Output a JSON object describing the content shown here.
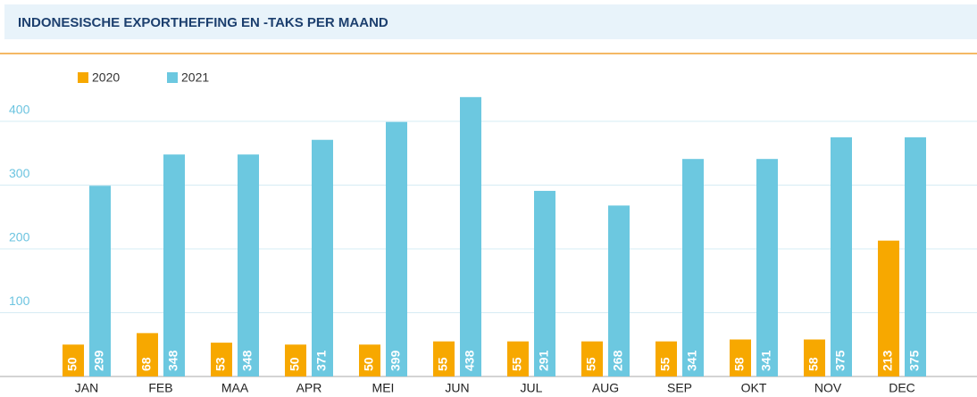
{
  "chart_data": {
    "type": "bar",
    "title": "INDONESISCHE EXPORTHEFFING EN -TAKS PER MAAND",
    "categories": [
      "JAN",
      "FEB",
      "MAA",
      "APR",
      "MEI",
      "JUN",
      "JUL",
      "AUG",
      "SEP",
      "OKT",
      "NOV",
      "DEC"
    ],
    "series": [
      {
        "name": "2020",
        "color": "#f7a800",
        "values": [
          50,
          68,
          53,
          50,
          50,
          55,
          55,
          55,
          55,
          58,
          58,
          213
        ]
      },
      {
        "name": "2021",
        "color": "#6cc8e0",
        "values": [
          299,
          348,
          348,
          371,
          399,
          438,
          291,
          268,
          341,
          341,
          375,
          375
        ]
      }
    ],
    "ylim": [
      0,
      500
    ],
    "yticks": [
      100,
      200,
      300,
      400
    ],
    "grid": true,
    "legend": "top-left"
  }
}
